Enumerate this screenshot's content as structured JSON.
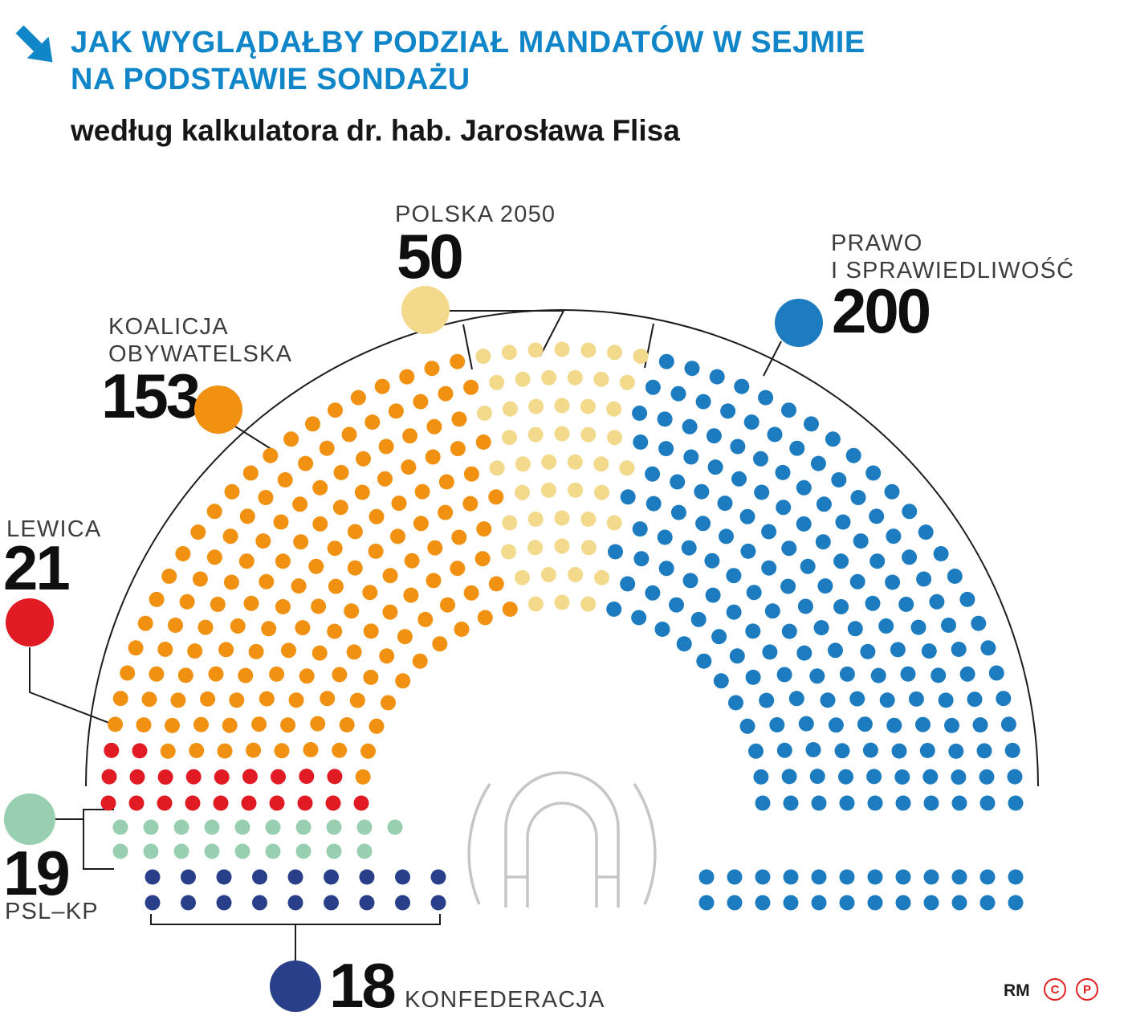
{
  "header": {
    "title_line1": "JAK WYGLĄDAŁBY PODZIAŁ MANDATÓW W SEJMIE",
    "title_line2": "NA PODSTAWIE SONDAŻU",
    "subtitle": "według kalkulatora dr. hab. Jarosława Flisa"
  },
  "colors": {
    "title_blue": "#1086c9",
    "copyright_red": "#e02020",
    "arch_gray": "#c6c6c6",
    "connector_black": "#1c1c1c"
  },
  "chart_data": {
    "type": "parliament",
    "title": "JAK WYGLĄDAŁBY PODZIAŁ MANDATÓW W SEJMIE NA PODSTAWIE SONDAŻU",
    "subtitle": "według kalkulatora dr. hab. Jarosława Flisa",
    "total_seats": 461,
    "legend_position": "around",
    "parties": [
      {
        "id": "lewica",
        "name": "LEWICA",
        "label_lines": [
          "LEWICA"
        ],
        "seats": 21,
        "color": "#e01b24"
      },
      {
        "id": "ko",
        "name": "KOALICJA OBYWATELSKA",
        "label_lines": [
          "KOALICJA",
          "OBYWATELSKA"
        ],
        "seats": 153,
        "color": "#f09111"
      },
      {
        "id": "p2050",
        "name": "POLSKA 2050",
        "label_lines": [
          "POLSKA 2050"
        ],
        "seats": 50,
        "color": "#f2d98c"
      },
      {
        "id": "pis",
        "name": "PRAWO I SPRAWIEDLIWOŚĆ",
        "label_lines": [
          "PRAWO",
          "I SPRAWIEDLIWOŚĆ"
        ],
        "seats": 200,
        "color": "#1d7cc0"
      },
      {
        "id": "psl",
        "name": "PSL–KP",
        "label_lines": [
          "PSL–KP"
        ],
        "seats": 19,
        "color": "#97cfb0"
      },
      {
        "id": "konf",
        "name": "KONFEDERACJA",
        "label_lines": [
          "KONFEDERACJA"
        ],
        "seats": 18,
        "color": "#2a3f8a"
      }
    ],
    "arc_order": [
      "lewica",
      "ko",
      "p2050",
      "pis"
    ],
    "straight_blocks": [
      {
        "party_id": "psl",
        "rows": [
          10,
          9
        ]
      },
      {
        "party_id": "konf",
        "rows": [
          9,
          9
        ]
      },
      {
        "party_id": "pis",
        "rows": [
          12,
          12
        ]
      }
    ]
  },
  "footer": {
    "credit": "RM",
    "marks": [
      "C",
      "P"
    ]
  }
}
